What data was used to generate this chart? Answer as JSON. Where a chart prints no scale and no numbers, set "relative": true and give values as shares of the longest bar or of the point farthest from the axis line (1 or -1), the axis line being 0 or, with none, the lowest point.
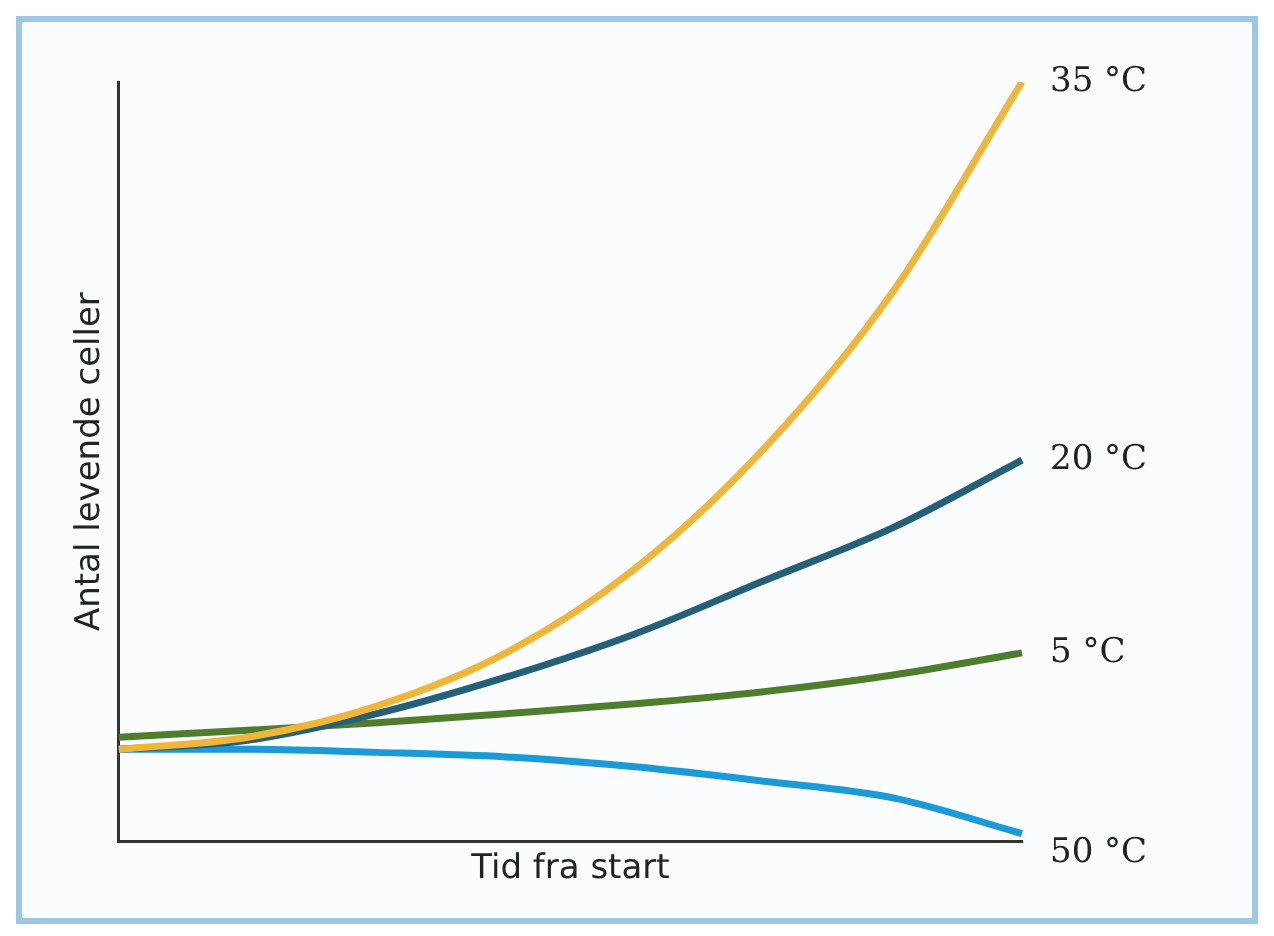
{
  "chart_data": {
    "type": "line",
    "relative": true,
    "xlabel": "Tid fra start",
    "ylabel": "Antal levende celler",
    "categories": [
      null,
      null,
      null,
      null,
      null,
      null,
      null,
      null
    ],
    "marker": "none",
    "grid": false,
    "legend": false,
    "tick_labels": false,
    "series": [
      {
        "name": "35 °C",
        "color": "#f0b63a",
        "values": [
          0.121,
          0.137,
          0.178,
          0.248,
          0.359,
          0.517,
          0.724,
          1
        ]
      },
      {
        "name": "20 °C",
        "color": "#24607a",
        "values": [
          0.121,
          0.133,
          0.168,
          0.216,
          0.273,
          0.343,
          0.413,
          0.502
        ]
      },
      {
        "name": "5 °C",
        "color": "#4e7d2e",
        "values": [
          0.137,
          0.146,
          0.156,
          0.168,
          0.181,
          0.197,
          0.219,
          0.248
        ]
      },
      {
        "name": "50 °C",
        "color": "#1a9ad6",
        "values": [
          0.121,
          0.121,
          0.117,
          0.111,
          0.098,
          0.079,
          0.057,
          0.01
        ]
      }
    ]
  }
}
